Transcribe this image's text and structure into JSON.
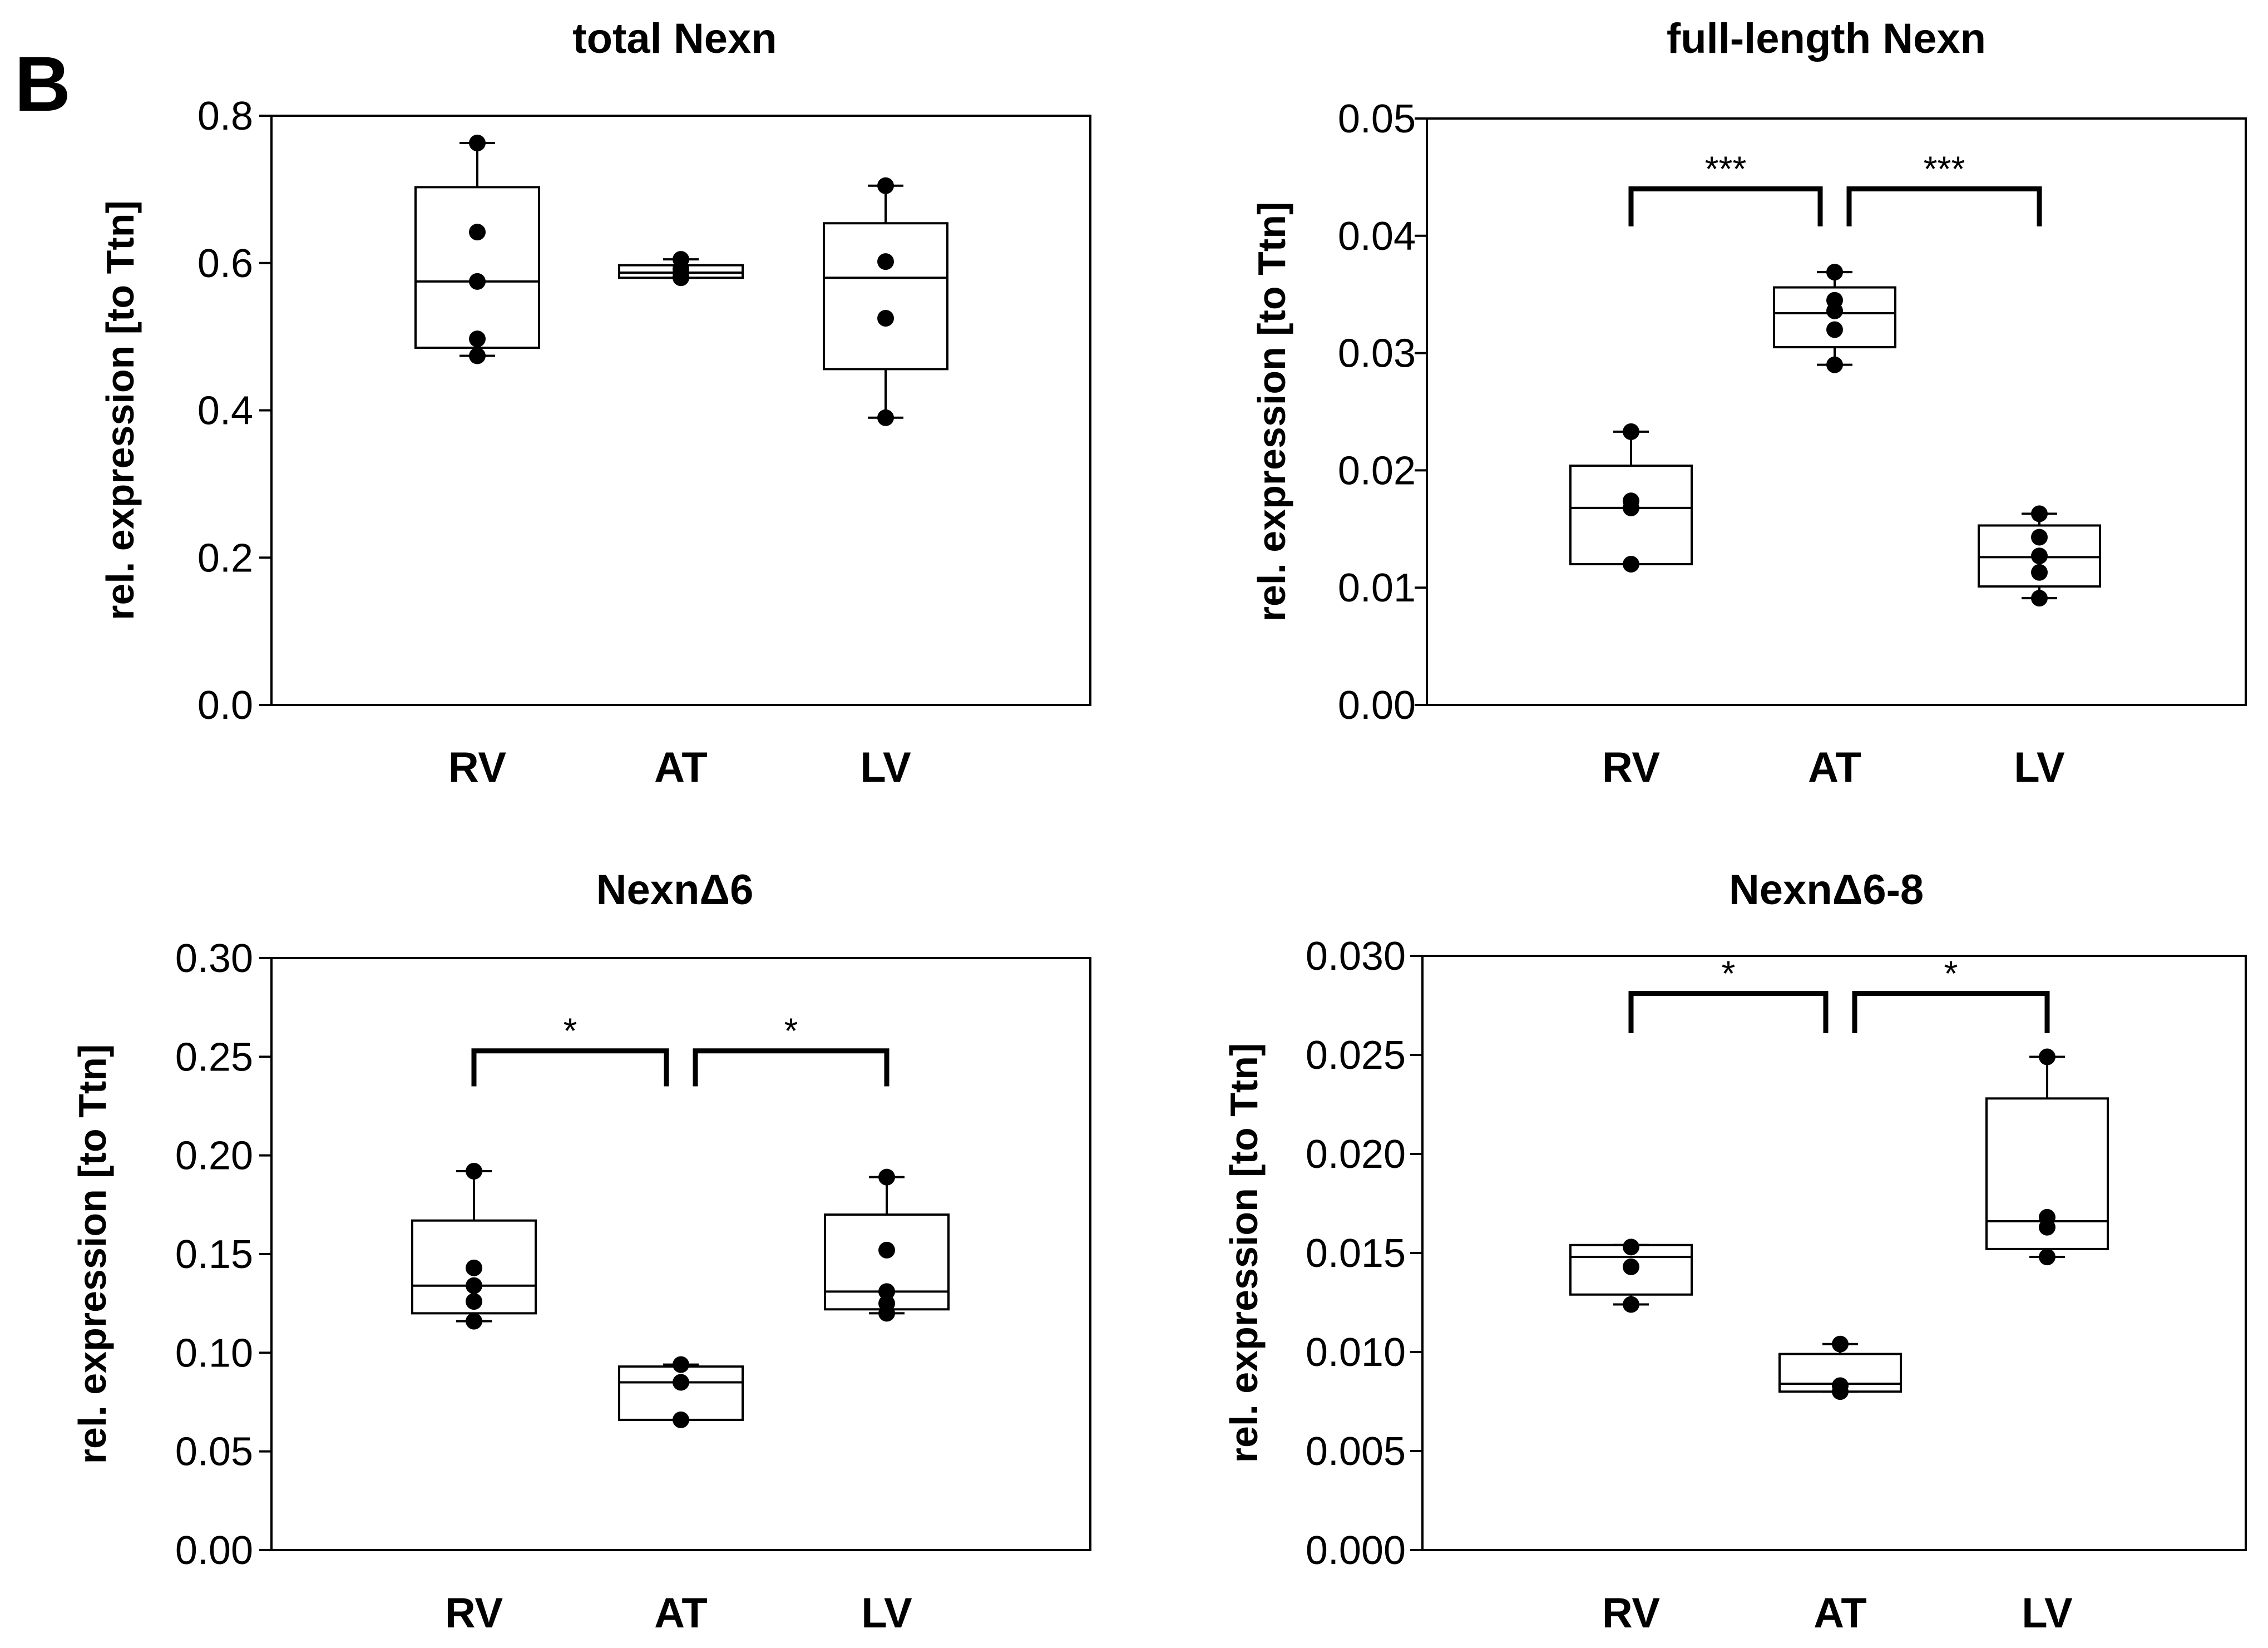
{
  "figure": {
    "panel_label": "B"
  },
  "chart_data": [
    {
      "type": "box",
      "title": "total Nexn",
      "ylabel": "rel. expression [to Ttn]",
      "xlabel": "",
      "categories": [
        "RV",
        "AT",
        "LV"
      ],
      "ylim": [
        0,
        0.8
      ],
      "yticks": [
        0.0,
        0.2,
        0.4,
        0.6,
        0.8
      ],
      "ytick_labels": [
        "0.0",
        "0.2",
        "0.4",
        "0.6",
        "0.8"
      ],
      "boxes": [
        {
          "category": "RV",
          "min": 0.474,
          "q1": 0.485,
          "median": 0.575,
          "q3": 0.703,
          "max": 0.763,
          "points": [
            0.763,
            0.642,
            0.575,
            0.497,
            0.474
          ]
        },
        {
          "category": "AT",
          "min": 0.58,
          "q1": 0.58,
          "median": 0.587,
          "q3": 0.597,
          "max": 0.605,
          "points": [
            0.605,
            0.592,
            0.582,
            0.58
          ]
        },
        {
          "category": "LV",
          "min": 0.39,
          "q1": 0.456,
          "median": 0.58,
          "q3": 0.654,
          "max": 0.705,
          "points": [
            0.705,
            0.602,
            0.525,
            0.39
          ]
        }
      ],
      "significance": []
    },
    {
      "type": "box",
      "title": "full-length Nexn",
      "ylabel": "rel. expression [to Ttn]",
      "xlabel": "",
      "categories": [
        "RV",
        "AT",
        "LV"
      ],
      "ylim": [
        0,
        0.05
      ],
      "yticks": [
        0.0,
        0.01,
        0.02,
        0.03,
        0.04,
        0.05
      ],
      "ytick_labels": [
        "0.00",
        "0.01",
        "0.02",
        "0.03",
        "0.04",
        "0.05"
      ],
      "boxes": [
        {
          "category": "RV",
          "min": 0.012,
          "q1": 0.012,
          "median": 0.0168,
          "q3": 0.0204,
          "max": 0.0233,
          "points": [
            0.0233,
            0.0174,
            0.0168,
            0.012
          ]
        },
        {
          "category": "AT",
          "min": 0.029,
          "q1": 0.0305,
          "median": 0.0334,
          "q3": 0.0356,
          "max": 0.0369,
          "points": [
            0.0369,
            0.0345,
            0.0336,
            0.032,
            0.029
          ]
        },
        {
          "category": "LV",
          "min": 0.0091,
          "q1": 0.0101,
          "median": 0.0126,
          "q3": 0.0153,
          "max": 0.0163,
          "points": [
            0.0163,
            0.0143,
            0.0127,
            0.0113,
            0.0091
          ]
        }
      ],
      "significance": [
        {
          "from": "RV",
          "to": "AT",
          "label": "***",
          "y": 0.044,
          "drop": 0.0032
        },
        {
          "from": "AT",
          "to": "LV",
          "label": "***",
          "y": 0.044,
          "drop": 0.0032
        }
      ]
    },
    {
      "type": "box",
      "title": "NexnΔ6",
      "ylabel": "rel. expression [to Ttn]",
      "xlabel": "",
      "categories": [
        "RV",
        "AT",
        "LV"
      ],
      "ylim": [
        0,
        0.3
      ],
      "yticks": [
        0.0,
        0.05,
        0.1,
        0.15,
        0.2,
        0.25,
        0.3
      ],
      "ytick_labels": [
        "0.00",
        "0.05",
        "0.10",
        "0.15",
        "0.20",
        "0.25",
        "0.30"
      ],
      "boxes": [
        {
          "category": "RV",
          "min": 0.116,
          "q1": 0.12,
          "median": 0.134,
          "q3": 0.167,
          "max": 0.192,
          "points": [
            0.192,
            0.143,
            0.134,
            0.126,
            0.116
          ]
        },
        {
          "category": "AT",
          "min": 0.066,
          "q1": 0.066,
          "median": 0.085,
          "q3": 0.093,
          "max": 0.094,
          "points": [
            0.094,
            0.085,
            0.066
          ]
        },
        {
          "category": "LV",
          "min": 0.12,
          "q1": 0.122,
          "median": 0.131,
          "q3": 0.17,
          "max": 0.189,
          "points": [
            0.189,
            0.152,
            0.131,
            0.125,
            0.12
          ]
        }
      ],
      "significance": [
        {
          "from": "RV",
          "to": "AT",
          "label": "*",
          "y": 0.253,
          "drop": 0.018
        },
        {
          "from": "AT",
          "to": "LV",
          "label": "*",
          "y": 0.253,
          "drop": 0.018
        }
      ]
    },
    {
      "type": "box",
      "title": "NexnΔ6-8",
      "ylabel": "rel. expression [to Ttn]",
      "xlabel": "",
      "categories": [
        "RV",
        "AT",
        "LV"
      ],
      "ylim": [
        0,
        0.03
      ],
      "yticks": [
        0.0,
        0.005,
        0.01,
        0.015,
        0.02,
        0.025,
        0.03
      ],
      "ytick_labels": [
        "0.000",
        "0.005",
        "0.010",
        "0.015",
        "0.020",
        "0.025",
        "0.030"
      ],
      "boxes": [
        {
          "category": "RV",
          "min": 0.0124,
          "q1": 0.0129,
          "median": 0.0148,
          "q3": 0.0154,
          "max": 0.0154,
          "points": [
            0.0153,
            0.0143,
            0.0124
          ]
        },
        {
          "category": "AT",
          "min": 0.008,
          "q1": 0.008,
          "median": 0.0084,
          "q3": 0.0099,
          "max": 0.0104,
          "points": [
            0.0104,
            0.0083,
            0.008
          ]
        },
        {
          "category": "LV",
          "min": 0.0148,
          "q1": 0.0152,
          "median": 0.0166,
          "q3": 0.0228,
          "max": 0.0249,
          "points": [
            0.0249,
            0.0168,
            0.0163,
            0.0148
          ]
        }
      ],
      "significance": [
        {
          "from": "RV",
          "to": "AT",
          "label": "*",
          "y": 0.0281,
          "drop": 0.002
        },
        {
          "from": "AT",
          "to": "LV",
          "label": "*",
          "y": 0.0281,
          "drop": 0.002
        }
      ]
    }
  ]
}
